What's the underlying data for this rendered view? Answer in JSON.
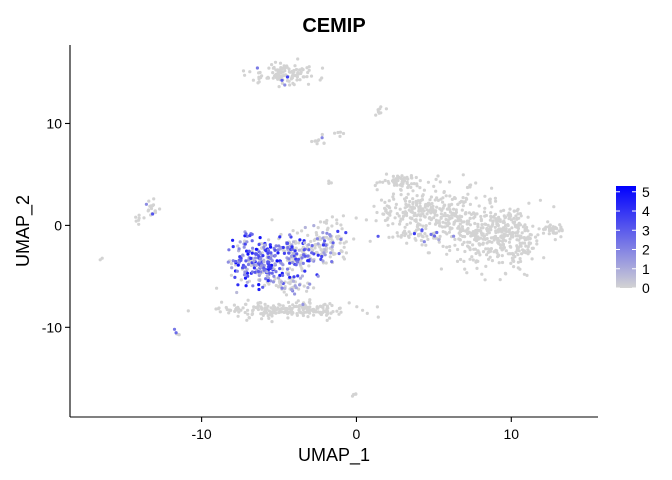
{
  "chart_data": {
    "type": "scatter",
    "title": "CEMIP",
    "xlabel": "UMAP_1",
    "ylabel": "UMAP_2",
    "xlim": [
      -18.5,
      15.6
    ],
    "ylim": [
      -18.8,
      17.7
    ],
    "xticks": [
      -10,
      0,
      10
    ],
    "yticks": [
      -10,
      0,
      10
    ],
    "grid": false,
    "color_scale": {
      "low_color": "#d3d3d3",
      "high_color": "#0000ff",
      "min": 0,
      "max": 5.3,
      "ticks": [
        0,
        1,
        2,
        3,
        4,
        5
      ],
      "legend_position": "right"
    },
    "clusters": [
      {
        "cx": 4.6,
        "cy": 1.5,
        "rx": 2.9,
        "ry": 2.1,
        "n": 260,
        "expr_frac": 0.004,
        "expr_max": 2.0
      },
      {
        "cx": 8.3,
        "cy": -0.8,
        "rx": 2.6,
        "ry": 3.0,
        "n": 330,
        "expr_frac": 0.004,
        "expr_max": 2.0
      },
      {
        "cx": 10.3,
        "cy": -1.3,
        "rx": 1.4,
        "ry": 2.5,
        "n": 120,
        "expr_frac": 0.0,
        "expr_max": 0.0
      },
      {
        "cx": 2.8,
        "cy": 4.4,
        "rx": 1.3,
        "ry": 0.7,
        "n": 60,
        "expr_frac": 0.0,
        "expr_max": 0.0
      },
      {
        "cx": 4.0,
        "cy": -1.0,
        "rx": 1.8,
        "ry": 0.6,
        "n": 40,
        "expr_frac": 0.25,
        "expr_max": 4.5
      },
      {
        "cx": -6.2,
        "cy": -3.5,
        "rx": 1.6,
        "ry": 2.3,
        "n": 220,
        "expr_frac": 0.75,
        "expr_max": 5.0
      },
      {
        "cx": -4.0,
        "cy": -3.0,
        "rx": 1.5,
        "ry": 1.7,
        "n": 150,
        "expr_frac": 0.5,
        "expr_max": 4.6
      },
      {
        "cx": -2.0,
        "cy": -1.8,
        "rx": 1.4,
        "ry": 2.0,
        "n": 120,
        "expr_frac": 0.3,
        "expr_max": 4.0
      },
      {
        "cx": -4.6,
        "cy": -8.3,
        "rx": 3.8,
        "ry": 0.7,
        "n": 210,
        "expr_frac": 0.01,
        "expr_max": 2.0
      },
      {
        "cx": -4.3,
        "cy": -5.8,
        "rx": 1.2,
        "ry": 0.8,
        "n": 50,
        "expr_frac": 0.25,
        "expr_max": 3.0
      },
      {
        "cx": -4.6,
        "cy": 14.8,
        "rx": 1.8,
        "ry": 1.0,
        "n": 110,
        "expr_frac": 0.05,
        "expr_max": 4.0
      },
      {
        "cx": 12.7,
        "cy": -0.4,
        "rx": 0.8,
        "ry": 0.5,
        "n": 30,
        "expr_frac": 0.0,
        "expr_max": 0.0
      },
      {
        "cx": -13.3,
        "cy": 1.6,
        "rx": 0.5,
        "ry": 0.9,
        "n": 18,
        "expr_frac": 0.2,
        "expr_max": 3.5
      },
      {
        "cx": -14.1,
        "cy": 0.6,
        "rx": 0.3,
        "ry": 0.5,
        "n": 6,
        "expr_frac": 0.0,
        "expr_max": 0.0
      },
      {
        "cx": -2.4,
        "cy": 8.2,
        "rx": 0.6,
        "ry": 0.4,
        "n": 10,
        "expr_frac": 0.1,
        "expr_max": 2.0
      },
      {
        "cx": 1.4,
        "cy": 11.3,
        "rx": 0.3,
        "ry": 0.5,
        "n": 8,
        "expr_frac": 0.0,
        "expr_max": 0.0
      },
      {
        "cx": -1.0,
        "cy": 9.0,
        "rx": 0.4,
        "ry": 0.4,
        "n": 5,
        "expr_frac": 0.0,
        "expr_max": 0.0
      },
      {
        "cx": -11.6,
        "cy": -10.5,
        "rx": 0.3,
        "ry": 0.4,
        "n": 5,
        "expr_frac": 0.3,
        "expr_max": 3.5
      },
      {
        "cx": 0.0,
        "cy": -16.5,
        "rx": 0.3,
        "ry": 0.3,
        "n": 4,
        "expr_frac": 0.0,
        "expr_max": 0.0
      },
      {
        "cx": -16.4,
        "cy": -3.3,
        "rx": 0.2,
        "ry": 0.2,
        "n": 2,
        "expr_frac": 0.0,
        "expr_max": 0.0
      },
      {
        "cx": -1.8,
        "cy": 4.1,
        "rx": 0.2,
        "ry": 0.3,
        "n": 3,
        "expr_frac": 0.0,
        "expr_max": 0.0
      }
    ]
  }
}
